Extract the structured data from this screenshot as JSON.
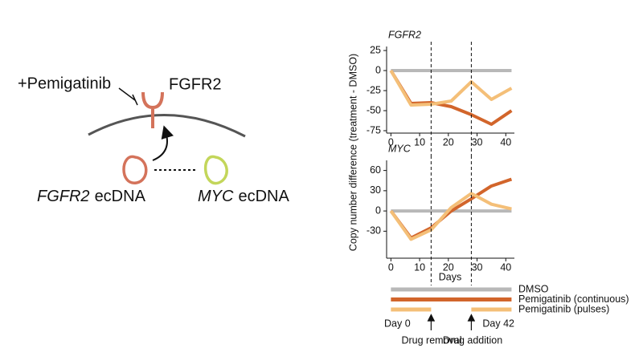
{
  "diagram": {
    "drug": "+Pemigatinib",
    "receptor": "FGFR2",
    "ecdna": [
      {
        "gene": "FGFR2",
        "suffix": "ecDNA"
      },
      {
        "gene": "MYC",
        "suffix": "ecDNA"
      }
    ]
  },
  "figure": {
    "ylabel": "Copy number difference (treatment - DMSO)",
    "xlabel": "Days"
  },
  "chart_data": [
    {
      "type": "line",
      "title": "FGFR2",
      "x": [
        0,
        7,
        14,
        21,
        28,
        35,
        42
      ],
      "series": [
        {
          "name": "DMSO",
          "color": "#b8b8b8",
          "values": [
            0,
            0,
            0,
            0,
            0,
            0,
            0
          ]
        },
        {
          "name": "Pemigatinib (continuous)",
          "color": "#d2652b",
          "values": [
            0,
            -41,
            -40,
            -45,
            -55,
            -67,
            -50
          ]
        },
        {
          "name": "Pemigatinib (pulses)",
          "color": "#f4bf78",
          "values": [
            0,
            -43,
            -42,
            -38,
            -14,
            -36,
            -22
          ]
        }
      ],
      "xlim": [
        -1.5,
        43
      ],
      "xticks": [
        0,
        10,
        20,
        30,
        40
      ],
      "ylim": [
        -78,
        30
      ],
      "yticks": [
        -75,
        -50,
        -25,
        0,
        25
      ],
      "vlines": [
        14,
        28
      ]
    },
    {
      "type": "line",
      "title": "MYC",
      "x": [
        0,
        7,
        14,
        21,
        28,
        35,
        42
      ],
      "series": [
        {
          "name": "DMSO",
          "color": "#b8b8b8",
          "values": [
            0,
            0,
            0,
            0,
            0,
            0,
            0
          ]
        },
        {
          "name": "Pemigatinib (continuous)",
          "color": "#d2652b",
          "values": [
            0,
            -40,
            -25,
            0,
            18,
            37,
            47
          ]
        },
        {
          "name": "Pemigatinib (pulses)",
          "color": "#f4bf78",
          "values": [
            0,
            -42,
            -28,
            5,
            26,
            10,
            3
          ]
        }
      ],
      "xlim": [
        -1.5,
        43
      ],
      "xticks": [
        0,
        10,
        20,
        30,
        40
      ],
      "ylim": [
        -70,
        75
      ],
      "yticks": [
        -30,
        0,
        30,
        60
      ],
      "vlines": [
        14,
        28
      ]
    }
  ],
  "timeline": {
    "start_label": "Day 0",
    "end_label": "Day 42",
    "removal_label": "Drug removal",
    "addition_label": "Drug addition"
  }
}
